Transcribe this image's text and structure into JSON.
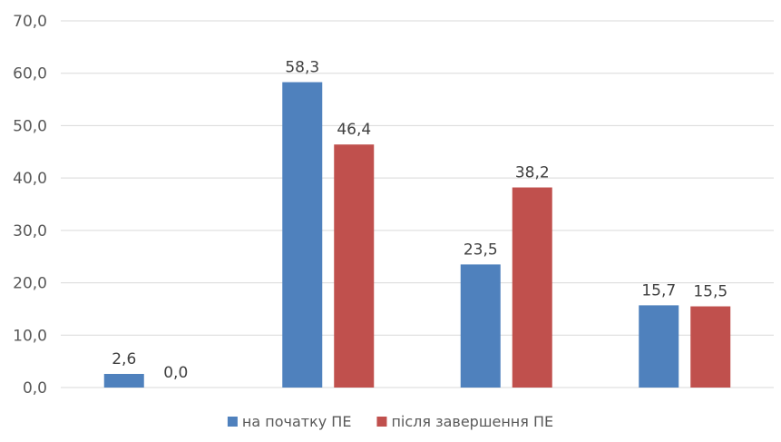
{
  "chart_data": {
    "type": "bar",
    "categories": [
      "",
      "",
      "",
      ""
    ],
    "series": [
      {
        "name": "на початку ПЕ",
        "values": [
          2.6,
          58.3,
          23.5,
          15.7
        ],
        "color": "#4f81bd"
      },
      {
        "name": "після завершення ПЕ",
        "values": [
          0.0,
          46.4,
          38.2,
          15.5
        ],
        "color": "#c0504d"
      }
    ],
    "y_ticks": [
      "0,0",
      "10,0",
      "20,0",
      "30,0",
      "40,0",
      "50,0",
      "60,0",
      "70,0"
    ],
    "ylim": [
      0,
      70
    ],
    "grid": true,
    "legend_position": "bottom",
    "data_labels": [
      [
        "2,6",
        "58,3",
        "23,5",
        "15,7"
      ],
      [
        "0,0",
        "46,4",
        "38,2",
        "15,5"
      ]
    ]
  }
}
